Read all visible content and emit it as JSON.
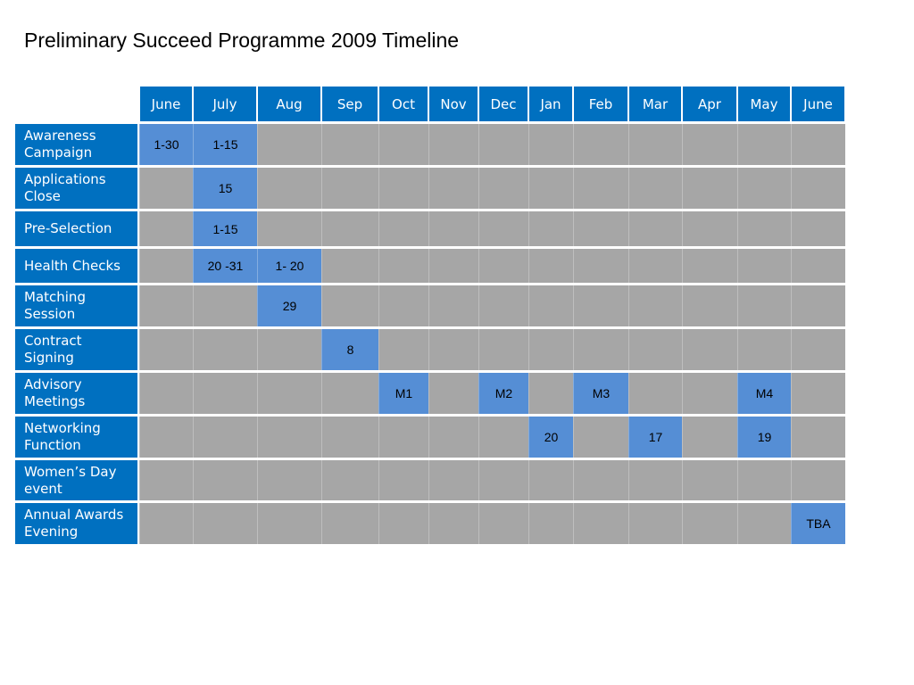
{
  "title": "Preliminary Succeed Programme 2009 Timeline",
  "colors": {
    "header_bg": "#0070C0",
    "label_bg": "#0070C0",
    "active_bg": "#558ED5",
    "empty_bg": "#A6A6A6",
    "header_text": "#FFFFFF",
    "label_text": "#FFFFFF",
    "cell_text": "#000000"
  },
  "timeline": {
    "months": [
      "June",
      "July",
      "Aug",
      "Sep",
      "Oct",
      "Nov",
      "Dec",
      "Jan",
      "Feb",
      "Mar",
      "Apr",
      "May",
      "June"
    ],
    "rows": [
      {
        "label": "Awareness Campaign",
        "cells": [
          "1-30",
          "1-15",
          "",
          "",
          "",
          "",
          "",
          "",
          "",
          "",
          "",
          "",
          ""
        ]
      },
      {
        "label": "Applications Close",
        "cells": [
          "",
          "15",
          "",
          "",
          "",
          "",
          "",
          "",
          "",
          "",
          "",
          "",
          ""
        ]
      },
      {
        "label": "Pre-Selection",
        "cells": [
          "",
          "1-15",
          "",
          "",
          "",
          "",
          "",
          "",
          "",
          "",
          "",
          "",
          ""
        ]
      },
      {
        "label": "Health Checks",
        "cells": [
          "",
          "20 -31",
          "1- 20",
          "",
          "",
          "",
          "",
          "",
          "",
          "",
          "",
          "",
          ""
        ]
      },
      {
        "label": "Matching Session",
        "cells": [
          "",
          "",
          "29",
          "",
          "",
          "",
          "",
          "",
          "",
          "",
          "",
          "",
          ""
        ]
      },
      {
        "label": "Contract Signing",
        "cells": [
          "",
          "",
          "",
          "8",
          "",
          "",
          "",
          "",
          "",
          "",
          "",
          "",
          ""
        ]
      },
      {
        "label": "Advisory Meetings",
        "cells": [
          "",
          "",
          "",
          "",
          "M1",
          "",
          "M2",
          "",
          "M3",
          "",
          "",
          "M4",
          ""
        ]
      },
      {
        "label": "Networking Function",
        "cells": [
          "",
          "",
          "",
          "",
          "",
          "",
          "",
          "20",
          "",
          "17",
          "",
          "19",
          ""
        ]
      },
      {
        "label": "Women’s Day event",
        "cells": [
          "",
          "",
          "",
          "",
          "",
          "",
          "",
          "",
          "",
          "",
          "",
          "",
          ""
        ]
      },
      {
        "label": "Annual Awards Evening",
        "cells": [
          "",
          "",
          "",
          "",
          "",
          "",
          "",
          "",
          "",
          "",
          "",
          "",
          "TBA"
        ]
      }
    ]
  }
}
